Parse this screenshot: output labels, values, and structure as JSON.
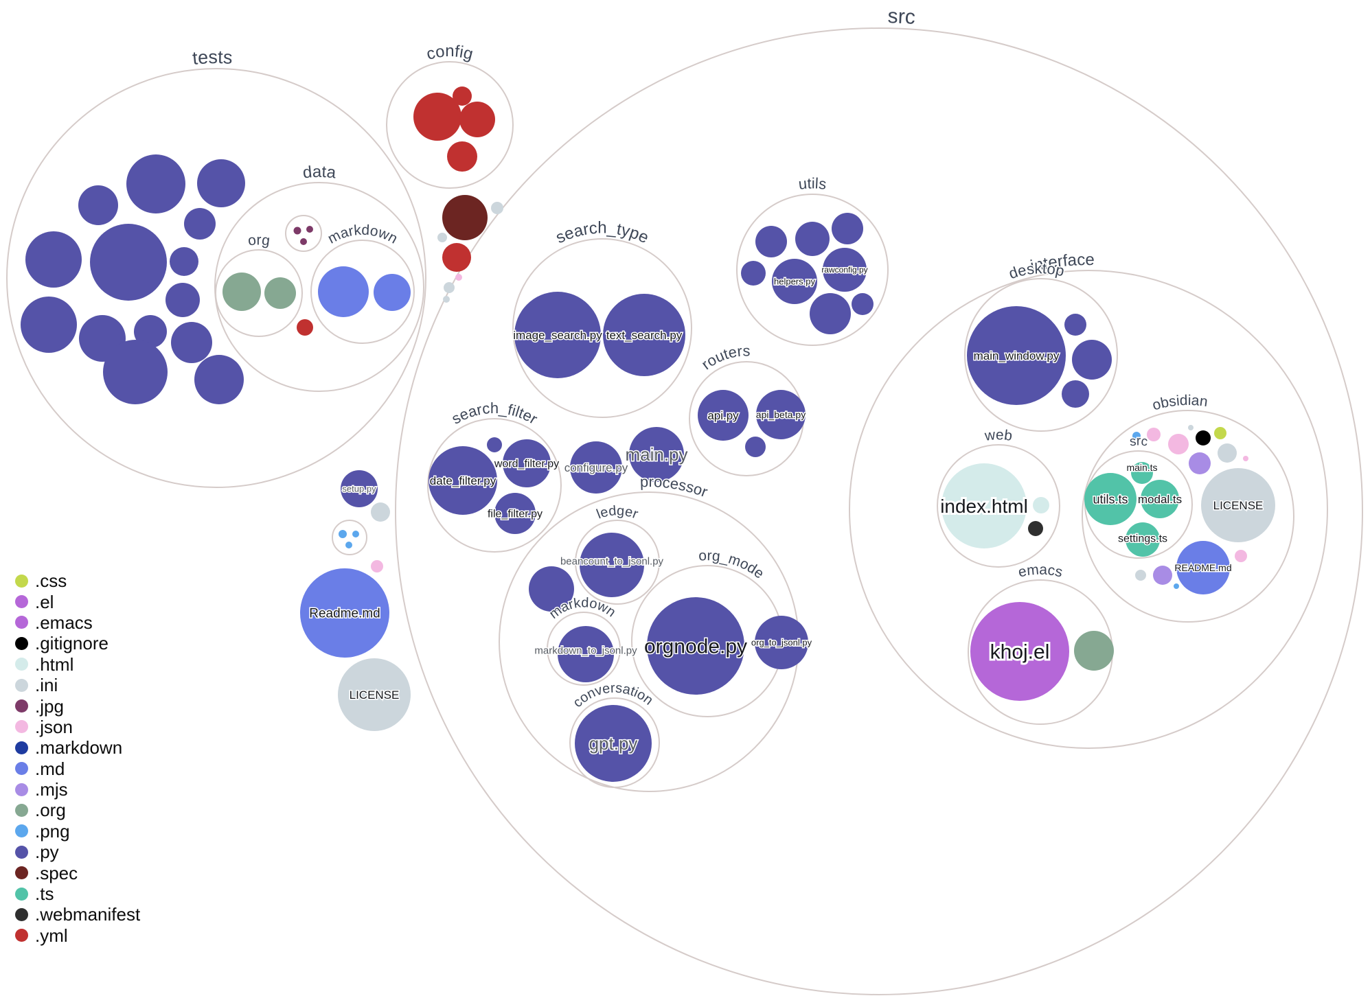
{
  "diagram": {
    "folder_labels": {
      "tests": "tests",
      "data": "data",
      "org": "org",
      "data_markdown": "markdown",
      "config": "config",
      "src": "src",
      "search_type": "search_type",
      "search_filter": "search_filter",
      "utils": "utils",
      "routers": "routers",
      "processor": "processor",
      "ledger": "ledger",
      "proc_markdown": "markdown",
      "org_mode": "org_mode",
      "conversation": "conversation",
      "interface": "interface",
      "desktop": "desktop",
      "web": "web",
      "obsidian": "obsidian",
      "obsidian_src": "src",
      "emacs": "emacs"
    },
    "file_labels": {
      "image_search": "image_search.py",
      "text_search": "text_search.py",
      "main_py": "main.py",
      "configure_py": "configure.py",
      "setup_py": "setup.py",
      "date_filter": "date_filter.py",
      "word_filter": "word_filter.py",
      "file_filter": "file_filter.py",
      "helpers": "helpers.py",
      "rawconfig": "rawconfig.py",
      "api": "api.py",
      "api_beta": "api_beta.py",
      "beancount": "beancount_to_jsonl.py",
      "markdown_to_jsonl": "markdown_to_jsonl.py",
      "orgnode": "orgnode.py",
      "org_to_jsonl": "org_to_jsonl.py",
      "gpt": "gpt.py",
      "main_window": "main_window.py",
      "index_html": "index.html",
      "khoj_el": "khoj.el",
      "utils_ts": "utils.ts",
      "modal_ts": "modal.ts",
      "settings_ts": "settings.ts",
      "main_ts": "main.ts",
      "obsidian_license": "LICENSE",
      "obsidian_readme": "README.md",
      "readme_md": "Readme.md",
      "license": "LICENSE"
    }
  },
  "legend": {
    "items": [
      {
        "ext": ".css",
        "color": "#c3d84c"
      },
      {
        "ext": ".el",
        "color": "#b567d8"
      },
      {
        "ext": ".emacs",
        "color": "#b567d8"
      },
      {
        "ext": ".gitignore",
        "color": "#000000"
      },
      {
        "ext": ".html",
        "color": "#d4ebea"
      },
      {
        "ext": ".ini",
        "color": "#ccd6dc"
      },
      {
        "ext": ".jpg",
        "color": "#7d3a68"
      },
      {
        "ext": ".json",
        "color": "#f3b8e1"
      },
      {
        "ext": ".markdown",
        "color": "#1e3ba0"
      },
      {
        "ext": ".md",
        "color": "#6a7ee7"
      },
      {
        "ext": ".mjs",
        "color": "#a88ce5"
      },
      {
        "ext": ".org",
        "color": "#86a892"
      },
      {
        "ext": ".png",
        "color": "#5ca7ed"
      },
      {
        "ext": ".py",
        "color": "#5553a8"
      },
      {
        "ext": ".spec",
        "color": "#6c2522"
      },
      {
        "ext": ".ts",
        "color": "#52c3a8"
      },
      {
        "ext": ".webmanifest",
        "color": "#2f2f2f"
      },
      {
        "ext": ".yml",
        "color": "#c03130"
      }
    ]
  },
  "colors": {
    "outline": "#d5cbc9",
    "folder_label": "#3e4757",
    "file_label": "#17191d",
    "file_label_muted": "#575c63"
  }
}
